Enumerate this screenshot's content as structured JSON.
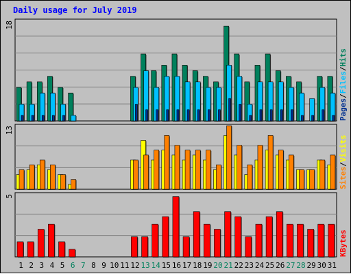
{
  "title": "Daily usage for July 2019",
  "colors": {
    "background": "#c0c0c0",
    "plot_background": "#c0c0c0",
    "grid": "#808080",
    "title": "#0000ff",
    "hits": "#00805c",
    "files": "#00c0ff",
    "pages": "#003090",
    "visits": "#ffff00",
    "sites": "#ff8000",
    "kbytes": "#ff0000",
    "weekend_label": "#00805c"
  },
  "chart_data": [
    {
      "type": "bar",
      "name": "hits-files-pages",
      "ymax_label": "18",
      "ylim": [
        0,
        18
      ],
      "series": [
        {
          "name": "Hits",
          "values": [
            6,
            7,
            7,
            8,
            6,
            5,
            0,
            0,
            0,
            0,
            0,
            8,
            12,
            9,
            10,
            12,
            10,
            9,
            8,
            7,
            17,
            12,
            7,
            10,
            12,
            9,
            8,
            7,
            0,
            8,
            8
          ]
        },
        {
          "name": "Files",
          "values": [
            3,
            3,
            5,
            5,
            3,
            1,
            0,
            0,
            0,
            0,
            0,
            6,
            9,
            6,
            8,
            8,
            7,
            7,
            6,
            6,
            10,
            8,
            3,
            7,
            7,
            7,
            6,
            5,
            4,
            6,
            5
          ]
        },
        {
          "name": "Pages",
          "values": [
            1,
            1,
            1,
            1,
            1,
            0,
            0,
            0,
            0,
            0,
            0,
            3,
            2,
            2,
            2,
            2,
            2,
            2,
            2,
            2,
            4,
            3,
            1,
            2,
            2,
            2,
            2,
            1,
            1,
            2,
            1
          ]
        }
      ],
      "legend": [
        "Pages",
        "Files",
        "Hits"
      ]
    },
    {
      "type": "bar",
      "name": "visits-sites",
      "ymax_label": "13",
      "ylim": [
        0,
        13
      ],
      "series": [
        {
          "name": "Visits",
          "values": [
            3,
            4,
            5,
            4,
            3,
            1,
            0,
            0,
            0,
            0,
            0,
            6,
            10,
            6,
            8,
            7,
            6,
            7,
            6,
            4,
            11,
            7,
            3,
            6,
            8,
            7,
            6,
            4,
            4,
            6,
            5
          ]
        },
        {
          "name": "Sites",
          "values": [
            4,
            5,
            6,
            5,
            3,
            2,
            0,
            0,
            0,
            0,
            0,
            6,
            7,
            8,
            11,
            9,
            8,
            8,
            8,
            5,
            13,
            9,
            5,
            9,
            11,
            8,
            7,
            4,
            4,
            6,
            7
          ]
        }
      ],
      "legend": [
        "Sites",
        "Visits"
      ]
    },
    {
      "type": "bar",
      "name": "kbytes",
      "ymax_label": "5",
      "ylim": [
        0,
        5
      ],
      "series": [
        {
          "name": "KBytes",
          "values": [
            1.2,
            1.2,
            2.2,
            2.6,
            1.2,
            0.6,
            0,
            0,
            0,
            0,
            0,
            1.6,
            1.6,
            2.6,
            3.2,
            4.8,
            1.6,
            3.6,
            2.6,
            2.2,
            3.6,
            3.2,
            1.6,
            2.6,
            3.2,
            3.6,
            2.6,
            2.6,
            2.2,
            2.6,
            2.6
          ]
        }
      ],
      "legend": [
        "KBytes"
      ]
    }
  ],
  "x_labels": [
    "1",
    "2",
    "3",
    "4",
    "5",
    "6",
    "7",
    "8",
    "9",
    "10",
    "11",
    "12",
    "13",
    "14",
    "15",
    "16",
    "17",
    "18",
    "19",
    "20",
    "21",
    "22",
    "23",
    "24",
    "25",
    "26",
    "27",
    "28",
    "29",
    "30",
    "31"
  ],
  "weekend_days": [
    6,
    7,
    13,
    14,
    20,
    21,
    27,
    28
  ],
  "legend_separator": "/"
}
